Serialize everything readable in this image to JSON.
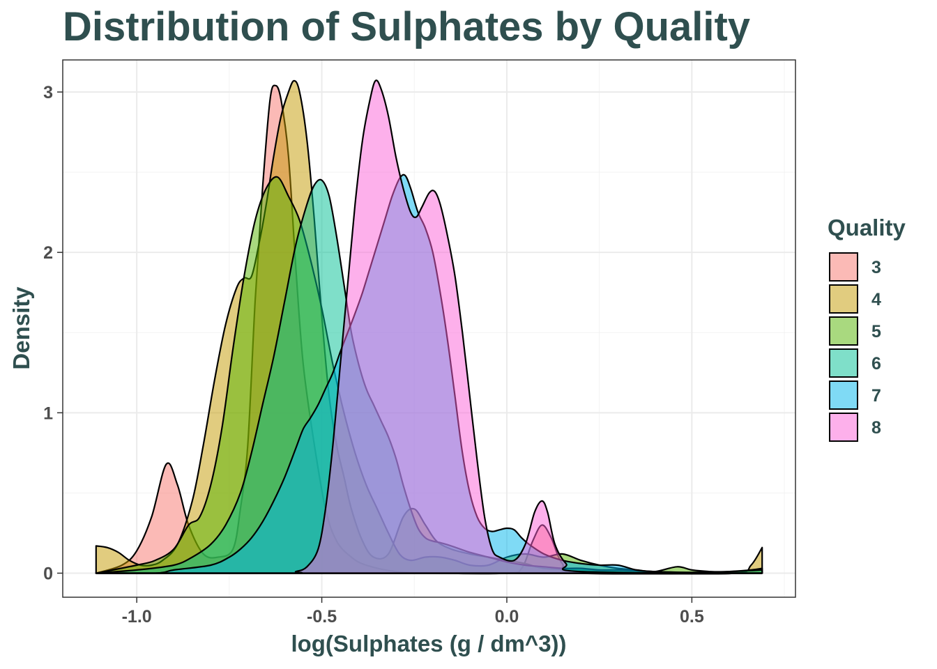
{
  "chart_data": {
    "type": "area",
    "title": "Distribution of Sulphates by Quality",
    "xlabel": "log(Sulphates (g / dm^3))",
    "ylabel": "Density",
    "xlim": [
      -1.2,
      0.78
    ],
    "ylim": [
      -0.15,
      3.2
    ],
    "x_ticks": [
      -1.0,
      -0.5,
      0.0,
      0.5
    ],
    "x_tick_labels": [
      "-1.0",
      "-0.5",
      "0.0",
      "0.5"
    ],
    "y_ticks": [
      0,
      1,
      2,
      3
    ],
    "y_tick_labels": [
      "0",
      "1",
      "2",
      "3"
    ],
    "grid": true,
    "legend": {
      "title": "Quality",
      "position": "right"
    },
    "series": [
      {
        "name": "3",
        "color": "#F8766D",
        "points": [
          [
            -1.11,
            0
          ],
          [
            -1.04,
            0.05
          ],
          [
            -1.0,
            0.14
          ],
          [
            -0.96,
            0.35
          ],
          [
            -0.92,
            0.68
          ],
          [
            -0.89,
            0.55
          ],
          [
            -0.86,
            0.3
          ],
          [
            -0.82,
            0.12
          ],
          [
            -0.78,
            0.1
          ],
          [
            -0.74,
            0.15
          ],
          [
            -0.72,
            0.4
          ],
          [
            -0.7,
            0.8
          ],
          [
            -0.68,
            1.7
          ],
          [
            -0.66,
            2.4
          ],
          [
            -0.64,
            2.95
          ],
          [
            -0.625,
            3.04
          ],
          [
            -0.61,
            2.95
          ],
          [
            -0.59,
            2.6
          ],
          [
            -0.57,
            1.9
          ],
          [
            -0.55,
            1.3
          ],
          [
            -0.52,
            0.8
          ],
          [
            -0.49,
            0.4
          ],
          [
            -0.46,
            0.2
          ],
          [
            -0.42,
            0.1
          ],
          [
            -0.38,
            0.05
          ],
          [
            -0.3,
            0.01
          ],
          [
            -0.2,
            0
          ],
          [
            0.0,
            0
          ],
          [
            0.04,
            0.03
          ],
          [
            0.07,
            0.2
          ],
          [
            0.095,
            0.3
          ],
          [
            0.12,
            0.22
          ],
          [
            0.15,
            0.06
          ],
          [
            0.2,
            0
          ],
          [
            0.69,
            0
          ]
        ]
      },
      {
        "name": "4",
        "color": "#C49A00",
        "points": [
          [
            -1.11,
            0.17
          ],
          [
            -1.08,
            0.16
          ],
          [
            -1.05,
            0.13
          ],
          [
            -1.02,
            0.08
          ],
          [
            -0.99,
            0.05
          ],
          [
            -0.96,
            0.05
          ],
          [
            -0.93,
            0.08
          ],
          [
            -0.89,
            0.18
          ],
          [
            -0.85,
            0.45
          ],
          [
            -0.82,
            0.8
          ],
          [
            -0.79,
            1.2
          ],
          [
            -0.76,
            1.55
          ],
          [
            -0.73,
            1.78
          ],
          [
            -0.71,
            1.84
          ],
          [
            -0.69,
            1.85
          ],
          [
            -0.67,
            2.05
          ],
          [
            -0.65,
            2.3
          ],
          [
            -0.63,
            2.6
          ],
          [
            -0.61,
            2.85
          ],
          [
            -0.59,
            3.0
          ],
          [
            -0.575,
            3.07
          ],
          [
            -0.56,
            3.0
          ],
          [
            -0.54,
            2.7
          ],
          [
            -0.52,
            2.2
          ],
          [
            -0.5,
            1.6
          ],
          [
            -0.48,
            1.1
          ],
          [
            -0.46,
            0.8
          ],
          [
            -0.44,
            0.6
          ],
          [
            -0.42,
            0.4
          ],
          [
            -0.39,
            0.2
          ],
          [
            -0.36,
            0.1
          ],
          [
            -0.32,
            0.12
          ],
          [
            -0.28,
            0.35
          ],
          [
            -0.25,
            0.4
          ],
          [
            -0.22,
            0.3
          ],
          [
            -0.19,
            0.2
          ],
          [
            -0.15,
            0.15
          ],
          [
            -0.1,
            0.12
          ],
          [
            -0.05,
            0.1
          ],
          [
            0.0,
            0.08
          ],
          [
            0.05,
            0.06
          ],
          [
            0.1,
            0.03
          ],
          [
            0.2,
            0.02
          ],
          [
            0.4,
            0
          ],
          [
            0.62,
            0
          ],
          [
            0.66,
            0.05
          ],
          [
            0.69,
            0.16
          ]
        ]
      },
      {
        "name": "5",
        "color": "#53B400",
        "points": [
          [
            -1.11,
            0
          ],
          [
            -1.0,
            0.05
          ],
          [
            -0.95,
            0.08
          ],
          [
            -0.9,
            0.15
          ],
          [
            -0.86,
            0.3
          ],
          [
            -0.83,
            0.35
          ],
          [
            -0.8,
            0.55
          ],
          [
            -0.77,
            0.9
          ],
          [
            -0.74,
            1.4
          ],
          [
            -0.71,
            1.85
          ],
          [
            -0.68,
            2.2
          ],
          [
            -0.65,
            2.4
          ],
          [
            -0.62,
            2.47
          ],
          [
            -0.59,
            2.35
          ],
          [
            -0.56,
            2.2
          ],
          [
            -0.53,
            1.95
          ],
          [
            -0.5,
            1.65
          ],
          [
            -0.47,
            1.3
          ],
          [
            -0.44,
            1.0
          ],
          [
            -0.41,
            0.75
          ],
          [
            -0.38,
            0.55
          ],
          [
            -0.35,
            0.4
          ],
          [
            -0.32,
            0.25
          ],
          [
            -0.29,
            0.12
          ],
          [
            -0.26,
            0.08
          ],
          [
            -0.22,
            0.1
          ],
          [
            -0.18,
            0.1
          ],
          [
            -0.14,
            0.08
          ],
          [
            -0.1,
            0.05
          ],
          [
            -0.05,
            0.05
          ],
          [
            0.0,
            0.1
          ],
          [
            0.05,
            0.12
          ],
          [
            0.1,
            0.1
          ],
          [
            0.15,
            0.12
          ],
          [
            0.2,
            0.08
          ],
          [
            0.25,
            0.05
          ],
          [
            0.3,
            0.03
          ],
          [
            0.35,
            0.02
          ],
          [
            0.4,
            0.01
          ],
          [
            0.46,
            0.04
          ],
          [
            0.5,
            0.02
          ],
          [
            0.55,
            0.01
          ],
          [
            0.6,
            0.01
          ],
          [
            0.66,
            0.02
          ],
          [
            0.69,
            0.03
          ]
        ]
      },
      {
        "name": "6",
        "color": "#00C094",
        "points": [
          [
            -1.11,
            0
          ],
          [
            -1.0,
            0.02
          ],
          [
            -0.9,
            0.05
          ],
          [
            -0.85,
            0.1
          ],
          [
            -0.8,
            0.18
          ],
          [
            -0.76,
            0.3
          ],
          [
            -0.72,
            0.5
          ],
          [
            -0.69,
            0.75
          ],
          [
            -0.66,
            1.05
          ],
          [
            -0.63,
            1.35
          ],
          [
            -0.6,
            1.7
          ],
          [
            -0.57,
            2.05
          ],
          [
            -0.54,
            2.3
          ],
          [
            -0.52,
            2.42
          ],
          [
            -0.5,
            2.45
          ],
          [
            -0.48,
            2.35
          ],
          [
            -0.46,
            2.1
          ],
          [
            -0.44,
            1.8
          ],
          [
            -0.42,
            1.5
          ],
          [
            -0.4,
            1.3
          ],
          [
            -0.38,
            1.15
          ],
          [
            -0.36,
            1.05
          ],
          [
            -0.34,
            0.95
          ],
          [
            -0.32,
            0.85
          ],
          [
            -0.3,
            0.72
          ],
          [
            -0.28,
            0.55
          ],
          [
            -0.26,
            0.4
          ],
          [
            -0.24,
            0.28
          ],
          [
            -0.22,
            0.22
          ],
          [
            -0.2,
            0.2
          ],
          [
            -0.18,
            0.19
          ],
          [
            -0.15,
            0.17
          ],
          [
            -0.1,
            0.13
          ],
          [
            -0.05,
            0.1
          ],
          [
            0.0,
            0.07
          ],
          [
            0.05,
            0.05
          ],
          [
            0.1,
            0.04
          ],
          [
            0.15,
            0.03
          ],
          [
            0.2,
            0.03
          ],
          [
            0.25,
            0.02
          ],
          [
            0.3,
            0.02
          ],
          [
            0.4,
            0.01
          ],
          [
            0.5,
            0.005
          ],
          [
            0.6,
            0.01
          ],
          [
            0.69,
            0.02
          ]
        ]
      },
      {
        "name": "7",
        "color": "#00B6EB",
        "points": [
          [
            -1.11,
            0
          ],
          [
            -0.95,
            0
          ],
          [
            -0.9,
            0.02
          ],
          [
            -0.8,
            0.05
          ],
          [
            -0.75,
            0.1
          ],
          [
            -0.72,
            0.15
          ],
          [
            -0.69,
            0.22
          ],
          [
            -0.66,
            0.32
          ],
          [
            -0.63,
            0.45
          ],
          [
            -0.6,
            0.6
          ],
          [
            -0.57,
            0.78
          ],
          [
            -0.55,
            0.9
          ],
          [
            -0.53,
            0.97
          ],
          [
            -0.51,
            1.05
          ],
          [
            -0.49,
            1.15
          ],
          [
            -0.47,
            1.25
          ],
          [
            -0.45,
            1.38
          ],
          [
            -0.43,
            1.5
          ],
          [
            -0.41,
            1.62
          ],
          [
            -0.39,
            1.75
          ],
          [
            -0.37,
            1.9
          ],
          [
            -0.35,
            2.05
          ],
          [
            -0.33,
            2.2
          ],
          [
            -0.31,
            2.35
          ],
          [
            -0.29,
            2.46
          ],
          [
            -0.275,
            2.48
          ],
          [
            -0.26,
            2.4
          ],
          [
            -0.24,
            2.25
          ],
          [
            -0.22,
            2.15
          ],
          [
            -0.2,
            2.0
          ],
          [
            -0.18,
            1.75
          ],
          [
            -0.16,
            1.45
          ],
          [
            -0.14,
            1.1
          ],
          [
            -0.12,
            0.75
          ],
          [
            -0.1,
            0.5
          ],
          [
            -0.08,
            0.35
          ],
          [
            -0.06,
            0.28
          ],
          [
            -0.04,
            0.26
          ],
          [
            -0.02,
            0.27
          ],
          [
            0.0,
            0.28
          ],
          [
            0.02,
            0.27
          ],
          [
            0.04,
            0.22
          ],
          [
            0.06,
            0.18
          ],
          [
            0.1,
            0.12
          ],
          [
            0.15,
            0.08
          ],
          [
            0.2,
            0.06
          ],
          [
            0.25,
            0.05
          ],
          [
            0.3,
            0.05
          ],
          [
            0.35,
            0.02
          ],
          [
            0.4,
            0.01
          ],
          [
            0.5,
            0
          ],
          [
            0.69,
            0
          ]
        ]
      },
      {
        "name": "8",
        "color": "#FB61D7",
        "points": [
          [
            -1.11,
            0
          ],
          [
            -0.6,
            0
          ],
          [
            -0.57,
            0.01
          ],
          [
            -0.54,
            0.04
          ],
          [
            -0.51,
            0.15
          ],
          [
            -0.49,
            0.4
          ],
          [
            -0.47,
            0.8
          ],
          [
            -0.45,
            1.3
          ],
          [
            -0.43,
            1.8
          ],
          [
            -0.41,
            2.3
          ],
          [
            -0.39,
            2.7
          ],
          [
            -0.37,
            2.95
          ],
          [
            -0.355,
            3.07
          ],
          [
            -0.34,
            3.02
          ],
          [
            -0.32,
            2.85
          ],
          [
            -0.3,
            2.6
          ],
          [
            -0.28,
            2.4
          ],
          [
            -0.26,
            2.25
          ],
          [
            -0.245,
            2.22
          ],
          [
            -0.23,
            2.28
          ],
          [
            -0.21,
            2.37
          ],
          [
            -0.195,
            2.38
          ],
          [
            -0.18,
            2.3
          ],
          [
            -0.16,
            2.1
          ],
          [
            -0.14,
            1.85
          ],
          [
            -0.12,
            1.5
          ],
          [
            -0.1,
            1.1
          ],
          [
            -0.08,
            0.7
          ],
          [
            -0.06,
            0.35
          ],
          [
            -0.04,
            0.15
          ],
          [
            -0.02,
            0.1
          ],
          [
            0.02,
            0.08
          ],
          [
            0.05,
            0.18
          ],
          [
            0.075,
            0.38
          ],
          [
            0.095,
            0.45
          ],
          [
            0.11,
            0.38
          ],
          [
            0.13,
            0.18
          ],
          [
            0.16,
            0.06
          ],
          [
            0.2,
            0.01
          ],
          [
            0.69,
            0
          ]
        ]
      }
    ]
  }
}
